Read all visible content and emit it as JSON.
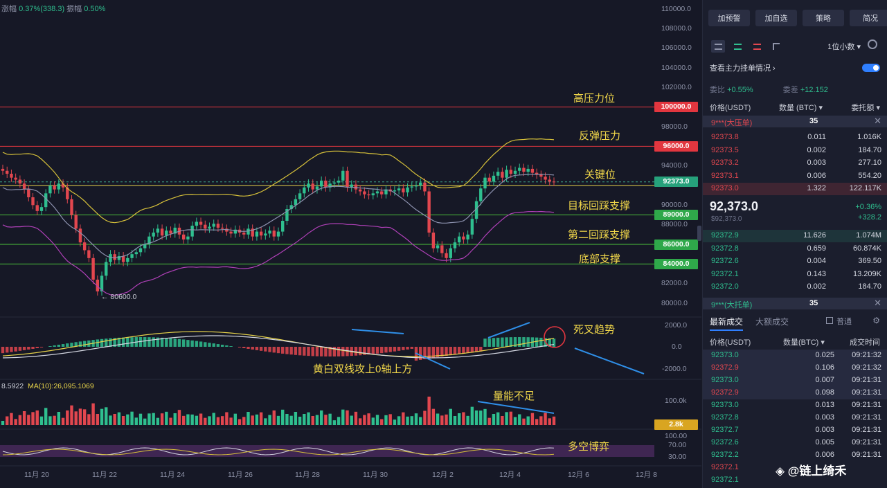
{
  "top_stats": {
    "change_label": "涨幅",
    "change_value": "0.37%(338.3)",
    "amplitude_label": "振幅",
    "amplitude_value": "0.50%"
  },
  "price_axis": [
    "110000.0",
    "108000.0",
    "106000.0",
    "104000.0",
    "102000.0",
    "98000.0",
    "94000.0",
    "90000.0",
    "88000.0",
    "82000.0",
    "80000.0"
  ],
  "macd_axis": [
    "2000.0",
    "0.0",
    "-2000.0"
  ],
  "volume_axis": [
    "100.0k"
  ],
  "rsi_axis": [
    "100.00",
    "70.00",
    "30.00"
  ],
  "price_tags": {
    "p100000": "100000.0",
    "p96000": "96000.0",
    "current": "92373.0",
    "p89000": "89000.0",
    "p86000": "86000.0",
    "p84000": "84000.0",
    "volume": "2.8k"
  },
  "annotations": {
    "high_pressure": "高压力位",
    "rebound_pressure": "反弹压力",
    "key_level": "关键位",
    "target_pullback": "目标回踩支撑",
    "second_pullback": "第二回踩支撑",
    "bottom_support": "底部支撑",
    "death_cross": "死叉趋势",
    "macd_note": "黄白双线攻上0轴上方",
    "volume_note": "量能不足",
    "bull_bear": "多空博弈",
    "low_marker": "← 80600.0",
    "ma_label": "MA(10):26,095.1069",
    "vol_prefix": "8.5922"
  },
  "dates": [
    "11月 20",
    "11月 22",
    "11月 24",
    "11月 26",
    "11月 28",
    "11月 30",
    "12月 2",
    "12月 4",
    "12月 6",
    "12月 8"
  ],
  "right_panel": {
    "buttons": [
      "加预警",
      "加自选",
      "策略",
      "简况"
    ],
    "decimal_select": "1位小数 ▾",
    "main_orders_label": "查看主力挂单情况 ›",
    "ratio_label": "委比",
    "ratio_value": "+0.55%",
    "diff_label": "委差",
    "diff_value": "+12.152",
    "headers": [
      "价格(USDT)",
      "数量 (BTC) ▾",
      "委托额 ▾"
    ],
    "ask_wall": {
      "name": "9***(大压单)",
      "count": "35"
    },
    "asks": [
      {
        "p": "92373.8",
        "q": "0.011",
        "t": "1.016K"
      },
      {
        "p": "92373.5",
        "q": "0.002",
        "t": "184.70"
      },
      {
        "p": "92373.2",
        "q": "0.003",
        "t": "277.10"
      },
      {
        "p": "92373.1",
        "q": "0.006",
        "t": "554.20"
      },
      {
        "p": "92373.0",
        "q": "1.322",
        "t": "122.117K"
      }
    ],
    "mid_price": "92,373.0",
    "mid_sub": "$92,373.0",
    "mid_change_pct": "+0.36%",
    "mid_change_abs": "+328.2",
    "bids": [
      {
        "p": "92372.9",
        "q": "11.626",
        "t": "1.074M"
      },
      {
        "p": "92372.8",
        "q": "0.659",
        "t": "60.874K"
      },
      {
        "p": "92372.6",
        "q": "0.004",
        "t": "369.50"
      },
      {
        "p": "92372.1",
        "q": "0.143",
        "t": "13.209K"
      },
      {
        "p": "92372.0",
        "q": "0.002",
        "t": "184.70"
      }
    ],
    "bid_wall": {
      "name": "9***(大托单)",
      "count": "35"
    },
    "trade_tabs": [
      "最新成交",
      "大额成交"
    ],
    "normal_label": "普通",
    "trade_headers": [
      "价格(USDT)",
      "数量(BTC) ▾",
      "成交时间"
    ],
    "trades": [
      {
        "p": "92373.0",
        "q": "0.025",
        "t": "09:21:32",
        "side": "buy"
      },
      {
        "p": "92372.9",
        "q": "0.106",
        "t": "09:21:32",
        "side": "sell"
      },
      {
        "p": "92373.0",
        "q": "0.007",
        "t": "09:21:31",
        "side": "buy"
      },
      {
        "p": "92372.9",
        "q": "0.098",
        "t": "09:21:31",
        "side": "sell"
      },
      {
        "p": "92373.0",
        "q": "0.013",
        "t": "09:21:31",
        "side": "buy"
      },
      {
        "p": "92372.8",
        "q": "0.003",
        "t": "09:21:31",
        "side": "buy"
      },
      {
        "p": "92372.7",
        "q": "0.003",
        "t": "09:21:31",
        "side": "buy"
      },
      {
        "p": "92372.6",
        "q": "0.005",
        "t": "09:21:31",
        "side": "buy"
      },
      {
        "p": "92372.2",
        "q": "0.006",
        "t": "09:21:31",
        "side": "buy"
      },
      {
        "p": "92372.1",
        "q": "",
        "t": "",
        "side": "sell"
      },
      {
        "p": "92372.1",
        "q": "",
        "t": "",
        "side": "buy"
      }
    ]
  },
  "brand": "◈ @链上绮禾",
  "colors": {
    "up": "#2fbf8f",
    "down": "#e2474f",
    "accent": "#2f7fff",
    "annot": "#f2d84a"
  }
}
